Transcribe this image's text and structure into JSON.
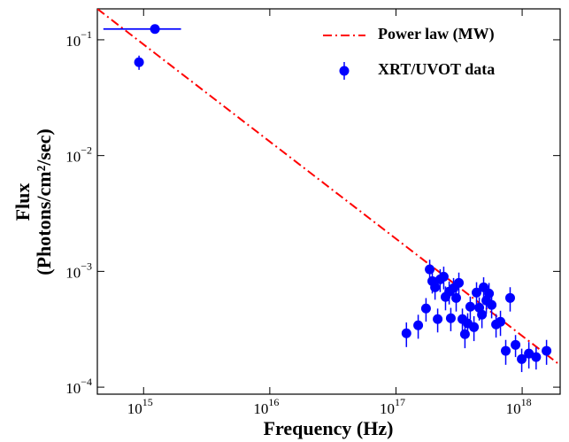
{
  "chart_data": {
    "type": "scatter",
    "xlabel": "Frequency (Hz)",
    "ylabel": [
      "Flux",
      "(Photons/cm²/sec)"
    ],
    "xscale": "log",
    "yscale": "log",
    "xlim": [
      430000000000000.0,
      2e+18
    ],
    "ylim": [
      8.7e-05,
      0.185
    ],
    "xticks": [
      {
        "value": 1000000000000000.0,
        "label": "10",
        "exponent": "15"
      },
      {
        "value": 1e+16,
        "label": "10",
        "exponent": "16"
      },
      {
        "value": 1e+17,
        "label": "10",
        "exponent": "17"
      },
      {
        "value": 1e+18,
        "label": "10",
        "exponent": "18"
      }
    ],
    "yticks": [
      {
        "value": 0.0001,
        "label": "10",
        "exponent": "−4"
      },
      {
        "value": 0.001,
        "label": "10",
        "exponent": "−3"
      },
      {
        "value": 0.01,
        "label": "10",
        "exponent": "−2"
      },
      {
        "value": 0.1,
        "label": "10",
        "exponent": "−1"
      }
    ],
    "legend": "upper right",
    "series": [
      {
        "name": "Power law (MW)",
        "type": "line",
        "color": "#ff0000",
        "dash": "dashdot",
        "x": [
          430000000000000.0,
          2e+18
        ],
        "values": [
          0.185,
          0.000155
        ]
      },
      {
        "name": "XRT/UVOT data",
        "type": "scatter",
        "color": "#0000ff",
        "x": [
          1230000000000000.0,
          920000000000000.0,
          1.21e+17,
          1.5e+17,
          1.73e+17,
          1.85e+17,
          1.94e+17,
          2.04e+17,
          2.14e+17,
          2.24e+17,
          2.39e+17,
          2.47e+17,
          2.64e+17,
          2.72e+17,
          2.86e+17,
          3e+17,
          3.15e+17,
          3.36e+17,
          3.52e+17,
          3.7e+17,
          3.88e+17,
          4.15e+17,
          4.35e+17,
          4.57e+17,
          4.8e+17,
          4.95e+17,
          5.2e+17,
          5.46e+17,
          5.73e+17,
          6.21e+17,
          6.73e+17,
          7.41e+17,
          8.03e+17,
          8.86e+17,
          9.92e+17,
          1.13e+18,
          1.29e+18,
          1.56e+18
        ],
        "values": [
          0.124,
          0.064,
          0.000292,
          0.000342,
          0.000478,
          0.00104,
          0.000824,
          0.000729,
          0.000387,
          0.000853,
          0.000899,
          0.000601,
          0.000668,
          0.000394,
          0.000716,
          0.00059,
          0.000796,
          0.000387,
          0.000287,
          0.000355,
          0.000495,
          0.00033,
          0.000656,
          0.000486,
          0.000423,
          0.000729,
          0.00056,
          0.000644,
          0.000513,
          0.000348,
          0.000367,
          0.000206,
          0.00059,
          0.000232,
          0.000175,
          0.000195,
          0.000182,
          0.000206
        ],
        "xerr": [
          750000000000000.0,
          null,
          null,
          null,
          null,
          null,
          null,
          null,
          null,
          null,
          null,
          null,
          null,
          null,
          null,
          null,
          null,
          null,
          null,
          null,
          null,
          null,
          null,
          null,
          null,
          null,
          null,
          null,
          null,
          null,
          null,
          null,
          null,
          null,
          null,
          null,
          null,
          null
        ],
        "yerr": [
          null,
          0.009,
          7e-05,
          8e-05,
          0.00011,
          0.00022,
          0.00018,
          0.00016,
          9e-05,
          0.00019,
          0.0002,
          0.00014,
          0.00015,
          9e-05,
          0.00016,
          0.00014,
          0.00018,
          9e-05,
          7e-05,
          8e-05,
          0.00011,
          8e-05,
          0.00015,
          0.00011,
          0.0001,
          0.00016,
          0.00013,
          0.00015,
          0.00012,
          8e-05,
          9e-05,
          5e-05,
          0.00014,
          5e-05,
          4e-05,
          5e-05,
          4e-05,
          5e-05
        ]
      }
    ]
  }
}
